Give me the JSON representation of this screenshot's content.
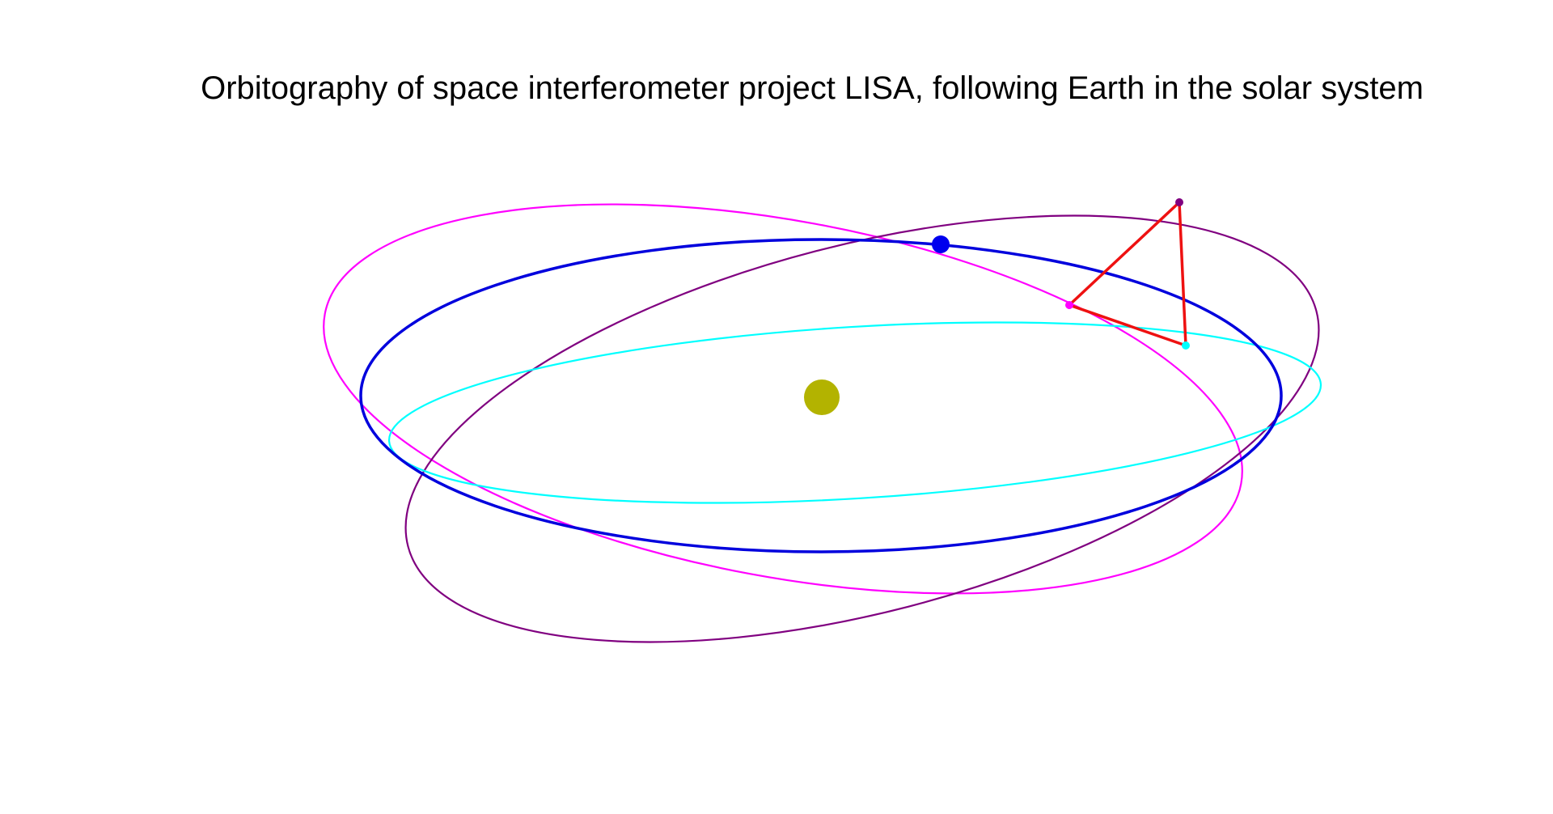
{
  "title": "Orbitography of space interferometer project LISA, following Earth in the solar system",
  "colors": {
    "background": "#ffffff",
    "title_text": "#000000",
    "sun": "#b3b300",
    "earth": "#0000ee",
    "earth_orbit": "#0000dd",
    "spacecraft_orbit_1": "#ff00ff",
    "spacecraft_orbit_2": "#800080",
    "spacecraft_orbit_3": "#00ffff",
    "lisa_triangle": "#ee1111"
  },
  "objects": [
    {
      "name": "sun",
      "icon": "sun-dot"
    },
    {
      "name": "earth",
      "icon": "planet-dot"
    },
    {
      "name": "earth-orbit"
    },
    {
      "name": "spacecraft-orbit-magenta"
    },
    {
      "name": "spacecraft-orbit-purple"
    },
    {
      "name": "spacecraft-orbit-cyan"
    },
    {
      "name": "lisa-constellation-triangle"
    }
  ]
}
